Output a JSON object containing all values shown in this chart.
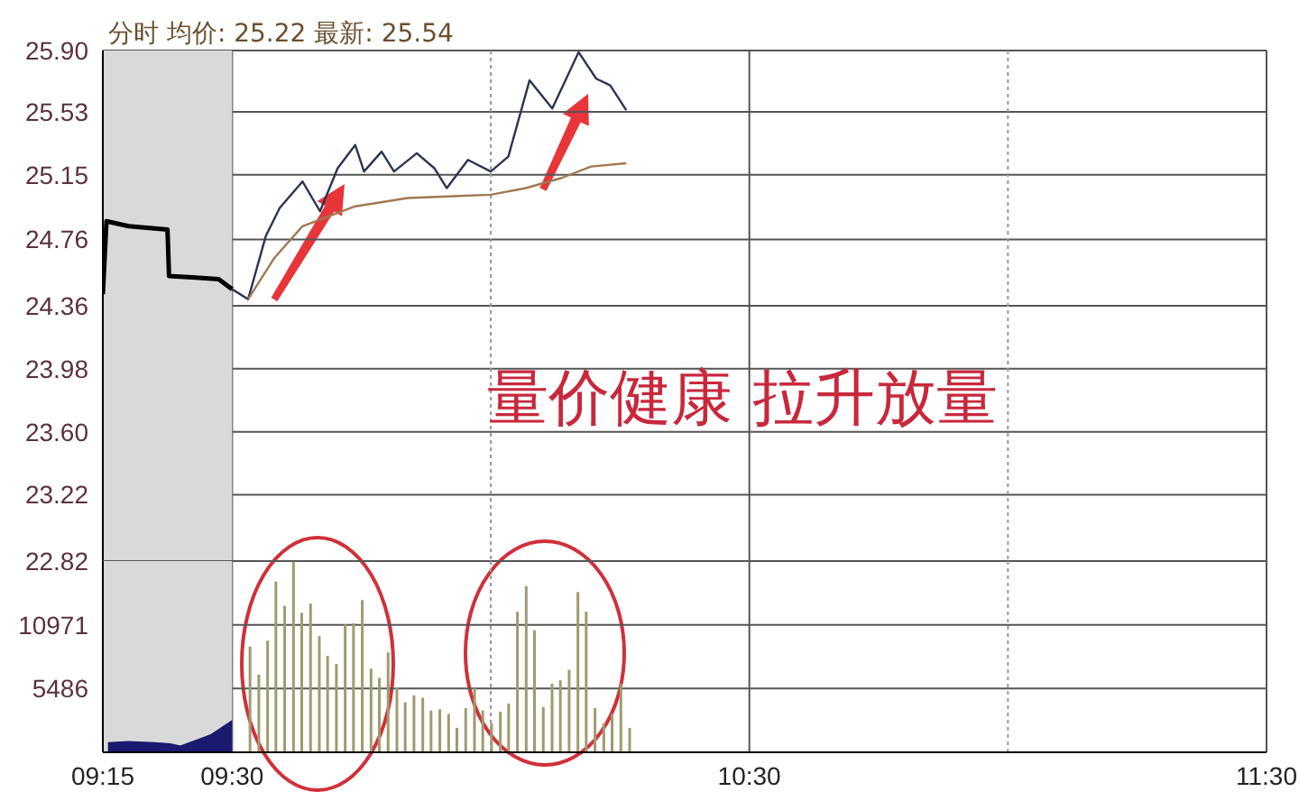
{
  "chart_data": [
    {
      "type": "line",
      "title": "分时 均价: 25.22 最新: 25.54",
      "annotations": [
        "量价健康 拉升放量"
      ],
      "tick_labels": "y",
      "grid": true,
      "xlim": [
        9.25,
        11.5
      ],
      "xticks": [
        9.25,
        9.5,
        {
          "value": 10,
          "label": null
        },
        10.5,
        {
          "value": 11,
          "label": null
        },
        11.5
      ],
      "ylim": [
        22.82,
        25.9
      ],
      "yticks": [
        22.82,
        23.22,
        {
          "value": 23.6,
          "label": "23.60"
        },
        23.98,
        24.36,
        24.76,
        25.15,
        25.53,
        {
          "value": 25.9,
          "label": "25.90"
        }
      ],
      "bands": [
        {
          "axis": "x",
          "from": 9.25,
          "to": 9.5,
          "color": "#d9d9d9"
        }
      ],
      "series": [
        {
          "color": "#000000",
          "x": [
            9.25,
            9.257,
            9.3,
            9.375,
            9.378,
            9.43,
            9.474,
            9.5
          ],
          "values": [
            24.43,
            24.87,
            24.84,
            24.82,
            24.54,
            24.53,
            24.52,
            24.46
          ]
        },
        {
          "color": "#2a3550",
          "x": [
            9.5,
            9.531,
            9.565,
            9.592,
            9.636,
            9.67,
            9.704,
            9.738,
            9.755,
            9.789,
            9.813,
            9.857,
            9.891,
            9.915,
            9.956,
            10.0,
            10.034,
            10.075,
            10.119,
            10.17,
            10.204,
            10.231,
            10.262
          ],
          "values": [
            24.46,
            24.4,
            24.78,
            24.95,
            25.11,
            24.93,
            25.19,
            25.33,
            25.17,
            25.29,
            25.17,
            25.28,
            25.19,
            25.07,
            25.24,
            25.17,
            25.26,
            25.72,
            25.55,
            25.89,
            25.73,
            25.69,
            25.54
          ]
        },
        {
          "color": "#a07850",
          "x": [
            9.531,
            9.582,
            9.636,
            9.738,
            9.84,
            10.0,
            10.068,
            10.136,
            10.194,
            10.262
          ],
          "values": [
            24.4,
            24.65,
            24.84,
            24.96,
            25.01,
            25.03,
            25.07,
            25.13,
            25.2,
            25.22
          ]
        }
      ]
    },
    {
      "type": "bar",
      "grid": true,
      "xlim": [
        9.25,
        11.5
      ],
      "xticks": [
        {
          "value": 9.25,
          "label": "09:15"
        },
        {
          "value": 9.5,
          "label": "09:30"
        },
        {
          "value": 10,
          "label": null
        },
        {
          "value": 10.5,
          "label": "10:30"
        },
        {
          "value": 11,
          "label": null
        },
        {
          "value": 11.5,
          "label": "11:30"
        }
      ],
      "ylim": [
        0,
        16457
      ],
      "yticks": [
        {
          "value": 0,
          "label": null
        },
        5486,
        10971,
        {
          "value": 16457,
          "label": null
        }
      ],
      "bands": [
        {
          "axis": "x",
          "from": 9.25,
          "to": 9.5,
          "color": "#d9d9d9"
        }
      ],
      "series": [
        {
          "type": "area",
          "color": "#1a1a6e",
          "x": [
            9.26,
            9.3,
            9.35,
            9.38,
            9.4,
            9.43,
            9.46,
            9.5
          ],
          "values": [
            800,
            900,
            800,
            700,
            500,
            1000,
            1500,
            2700
          ]
        },
        {
          "color": "#a09a70",
          "x": [
            9.533,
            9.55,
            9.567,
            9.583,
            9.6,
            9.617,
            9.633,
            9.65,
            9.667,
            9.683,
            9.7,
            9.717,
            9.733,
            9.75,
            9.767,
            9.783,
            9.8,
            9.817,
            9.833,
            9.85,
            9.867,
            9.883,
            9.9,
            9.917,
            9.933,
            9.95,
            9.967,
            9.983,
            10.0,
            10.017,
            10.033,
            10.05,
            10.067,
            10.083,
            10.1,
            10.117,
            10.133,
            10.15,
            10.167,
            10.183,
            10.2,
            10.217,
            10.233,
            10.25,
            10.267
          ],
          "values": [
            9100,
            6700,
            9600,
            14700,
            12600,
            16400,
            12000,
            12800,
            10000,
            8300,
            7600,
            11000,
            11100,
            13100,
            7200,
            6400,
            8600,
            5600,
            4300,
            4900,
            4700,
            3600,
            3700,
            3300,
            2100,
            3800,
            5500,
            3600,
            2500,
            3500,
            4200,
            12100,
            14300,
            10500,
            3900,
            5900,
            6200,
            7100,
            13800,
            12100,
            3800,
            2500,
            3300,
            5900,
            2100
          ]
        }
      ]
    }
  ]
}
